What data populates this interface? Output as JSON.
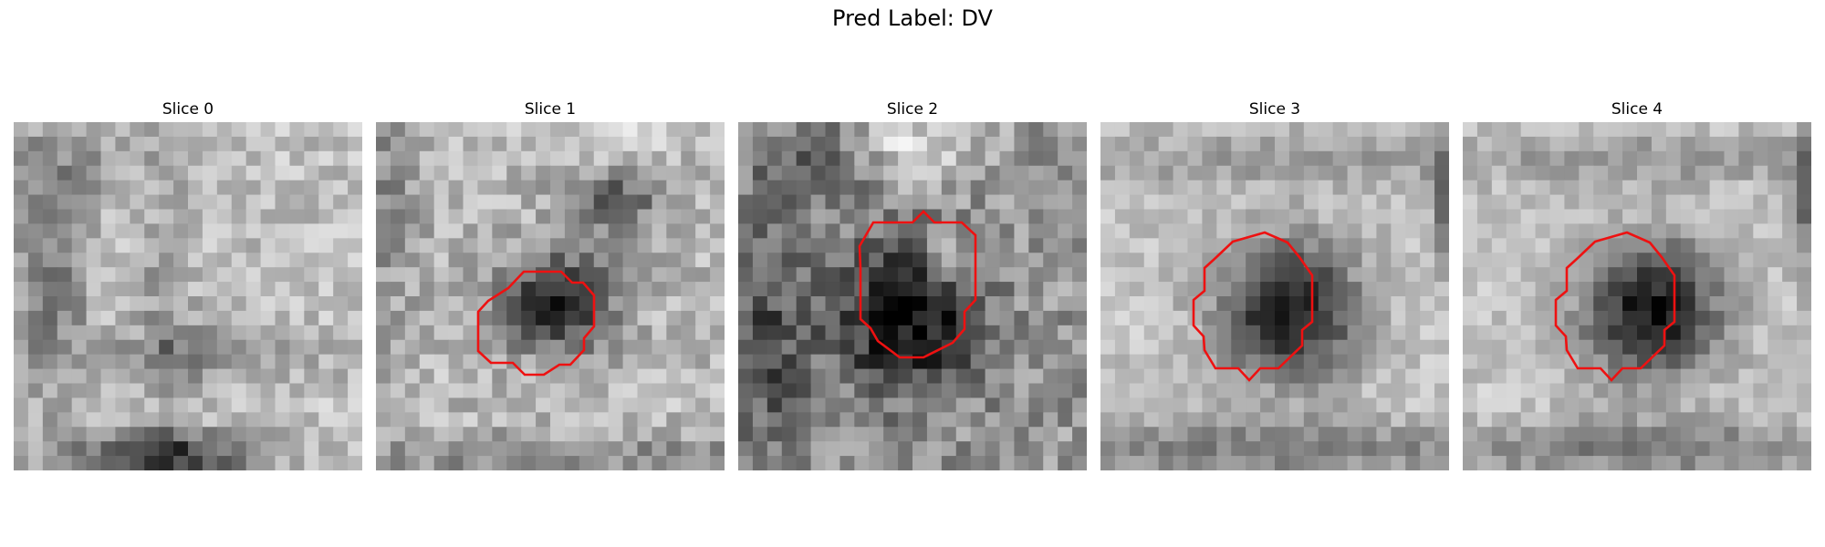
{
  "figure": {
    "title": "Pred Label: DV"
  },
  "colors": {
    "contour": "#ee1111",
    "background": "#ffffff"
  },
  "slices": [
    {
      "title": "Slice 0",
      "has_contour": false
    },
    {
      "title": "Slice 1",
      "has_contour": true
    },
    {
      "title": "Slice 2",
      "has_contour": true
    },
    {
      "title": "Slice 3",
      "has_contour": true
    },
    {
      "title": "Slice 4",
      "has_contour": true
    }
  ]
}
